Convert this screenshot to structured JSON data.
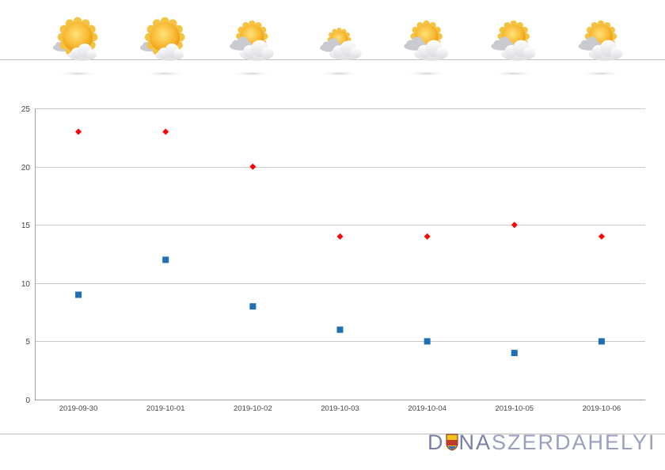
{
  "forecast": {
    "icons": [
      {
        "date": "2019-09-30",
        "icon": "mostly-sunny-icon"
      },
      {
        "date": "2019-10-01",
        "icon": "mostly-sunny-icon"
      },
      {
        "date": "2019-10-02",
        "icon": "partly-cloudy-icon"
      },
      {
        "date": "2019-10-03",
        "icon": "cloudy-icon"
      },
      {
        "date": "2019-10-04",
        "icon": "partly-cloudy-icon"
      },
      {
        "date": "2019-10-05",
        "icon": "partly-cloudy-icon"
      },
      {
        "date": "2019-10-06",
        "icon": "partly-cloudy-icon"
      }
    ]
  },
  "brand": {
    "logo_text": "DUNASZERDAHELYI",
    "logo_part1": "D",
    "logo_part2": "NA",
    "logo_part3": "SZERDAHELYI",
    "accent_color": "#7b7fa6"
  },
  "chart_data": {
    "type": "scatter",
    "categories": [
      "2019-09-30",
      "2019-10-01",
      "2019-10-02",
      "2019-10-03",
      "2019-10-04",
      "2019-10-05",
      "2019-10-06"
    ],
    "series": [
      {
        "values": [
          23,
          23,
          20,
          14,
          14,
          15,
          14
        ],
        "color": "#ff0000",
        "marker": "diamond"
      },
      {
        "values": [
          9,
          12,
          8,
          6,
          5,
          4,
          5
        ],
        "color": "#1f6fb5",
        "marker": "square"
      }
    ],
    "ylim": [
      0,
      25
    ],
    "yticks": [
      0,
      5,
      10,
      15,
      20,
      25
    ],
    "grid": true,
    "legend": "none"
  }
}
